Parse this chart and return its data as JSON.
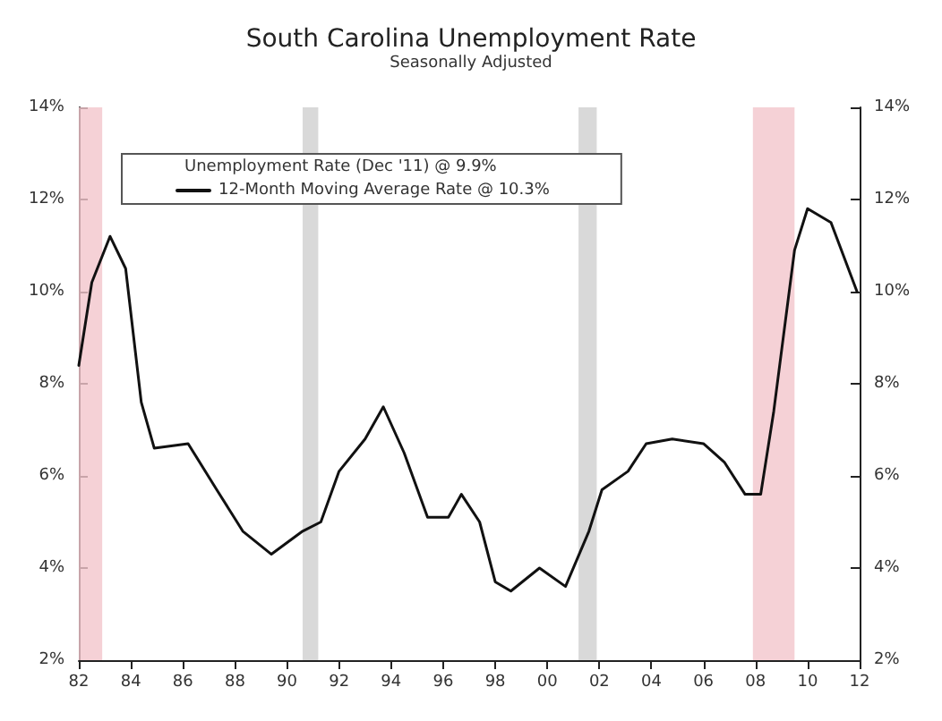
{
  "chart_data": {
    "type": "line",
    "title": "South Carolina Unemployment Rate",
    "subtitle": "Seasonally Adjusted",
    "annotations": [
      "Unemployment Rate (Dec '11) @ 9.9%"
    ],
    "series": [
      {
        "name": "12-Month Moving Average Rate @ 10.3%",
        "color": "#111111",
        "x": [
          1982.0,
          1982.5,
          1983.2,
          1983.8,
          1984.4,
          1984.9,
          1986.2,
          1987.3,
          1988.3,
          1989.4,
          1990.6,
          1991.3,
          1992.0,
          1993.0,
          1993.7,
          1994.5,
          1995.4,
          1996.2,
          1996.7,
          1997.4,
          1998.0,
          1998.6,
          1999.7,
          2000.7,
          2001.6,
          2002.1,
          2003.1,
          2003.8,
          2004.8,
          2006.0,
          2006.8,
          2007.6,
          2008.2,
          2008.7,
          2009.5,
          2010.0,
          2010.9,
          2011.9
        ],
        "values": [
          8.4,
          10.2,
          11.2,
          10.5,
          7.6,
          6.6,
          6.7,
          5.7,
          4.8,
          4.3,
          4.8,
          5.0,
          6.1,
          6.8,
          7.5,
          6.5,
          5.1,
          5.1,
          5.6,
          5.0,
          3.7,
          3.5,
          4.0,
          3.6,
          4.8,
          5.7,
          6.1,
          6.7,
          6.8,
          6.7,
          6.3,
          5.6,
          5.6,
          7.4,
          10.9,
          11.8,
          11.5,
          10.0
        ]
      }
    ],
    "xlim": [
      1982,
      2012
    ],
    "xticks": [
      {
        "value": 1982,
        "label": "82"
      },
      {
        "value": 1984,
        "label": "84"
      },
      {
        "value": 1986,
        "label": "86"
      },
      {
        "value": 1988,
        "label": "88"
      },
      {
        "value": 1990,
        "label": "90"
      },
      {
        "value": 1992,
        "label": "92"
      },
      {
        "value": 1994,
        "label": "94"
      },
      {
        "value": 1996,
        "label": "96"
      },
      {
        "value": 1998,
        "label": "98"
      },
      {
        "value": 2000,
        "label": "00"
      },
      {
        "value": 2002,
        "label": "02"
      },
      {
        "value": 2004,
        "label": "04"
      },
      {
        "value": 2006,
        "label": "06"
      },
      {
        "value": 2008,
        "label": "08"
      },
      {
        "value": 2010,
        "label": "10"
      },
      {
        "value": 2012,
        "label": "12"
      }
    ],
    "ylim": [
      2,
      14
    ],
    "yticks": [
      {
        "value": 2,
        "label": "2%"
      },
      {
        "value": 4,
        "label": "4%"
      },
      {
        "value": 6,
        "label": "6%"
      },
      {
        "value": 8,
        "label": "8%"
      },
      {
        "value": 10,
        "label": "10%"
      },
      {
        "value": 12,
        "label": "12%"
      },
      {
        "value": 14,
        "label": "14%"
      }
    ],
    "y2lim": [
      2,
      14
    ],
    "y2ticks": [
      {
        "value": 2,
        "label": "2%"
      },
      {
        "value": 4,
        "label": "4%"
      },
      {
        "value": 6,
        "label": "6%"
      },
      {
        "value": 8,
        "label": "8%"
      },
      {
        "value": 10,
        "label": "10%"
      },
      {
        "value": 12,
        "label": "12%"
      },
      {
        "value": 14,
        "label": "14%"
      }
    ],
    "bands": [
      {
        "axis": "x",
        "from": 1982.0,
        "to": 1982.9,
        "color": "#f2c6cc"
      },
      {
        "axis": "x",
        "from": 1990.6,
        "to": 1991.2,
        "color": "#d0d0d0"
      },
      {
        "axis": "x",
        "from": 2001.2,
        "to": 2001.9,
        "color": "#d0d0d0"
      },
      {
        "axis": "x",
        "from": 2007.9,
        "to": 2009.5,
        "color": "#f2c6cc"
      }
    ],
    "grid": false,
    "legend": "top left",
    "marker": "none",
    "line_style": "solid"
  }
}
